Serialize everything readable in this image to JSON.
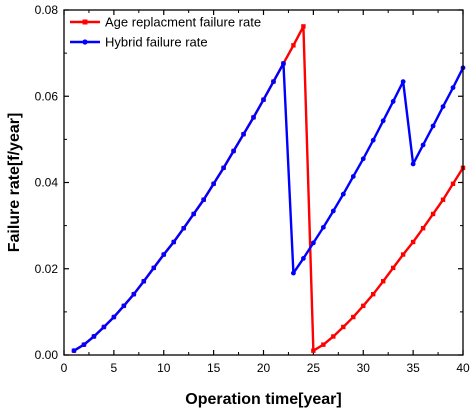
{
  "chart_data": {
    "type": "line",
    "xlabel": "Operation time[year]",
    "ylabel": "Failure rate[f/year]",
    "xlim": [
      0,
      40
    ],
    "ylim": [
      0,
      0.08
    ],
    "x_ticks": [
      "0",
      "5",
      "10",
      "15",
      "20",
      "25",
      "30",
      "35",
      "40"
    ],
    "y_ticks": [
      "0.00",
      "0.02",
      "0.04",
      "0.06",
      "0.08"
    ],
    "grid": false,
    "legend_position": "top-left",
    "series": [
      {
        "name": "Age replacment failure rate",
        "color": "#ff0000",
        "marker": "square",
        "points": [
          [
            1,
            0.001
          ],
          [
            2,
            0.0024
          ],
          [
            3,
            0.0043
          ],
          [
            4,
            0.0065
          ],
          [
            5,
            0.0088
          ],
          [
            6,
            0.0114
          ],
          [
            7,
            0.0141
          ],
          [
            8,
            0.0171
          ],
          [
            9,
            0.0202
          ],
          [
            10,
            0.0233
          ],
          [
            11,
            0.0262
          ],
          [
            12,
            0.0294
          ],
          [
            13,
            0.0327
          ],
          [
            14,
            0.036
          ],
          [
            15,
            0.0397
          ],
          [
            16,
            0.0434
          ],
          [
            17,
            0.0473
          ],
          [
            18,
            0.0512
          ],
          [
            19,
            0.0551
          ],
          [
            20,
            0.0592
          ],
          [
            21,
            0.0634
          ],
          [
            22,
            0.0676
          ],
          [
            23,
            0.0718
          ],
          [
            24,
            0.0762
          ],
          [
            25,
            0.001
          ],
          [
            26,
            0.0024
          ],
          [
            27,
            0.0043
          ],
          [
            28,
            0.0065
          ],
          [
            29,
            0.0088
          ],
          [
            30,
            0.0114
          ],
          [
            31,
            0.0141
          ],
          [
            32,
            0.0171
          ],
          [
            33,
            0.0202
          ],
          [
            34,
            0.0233
          ],
          [
            35,
            0.0262
          ],
          [
            36,
            0.0294
          ],
          [
            37,
            0.0327
          ],
          [
            38,
            0.036
          ],
          [
            39,
            0.0397
          ],
          [
            40,
            0.0434
          ]
        ]
      },
      {
        "name": "Hybrid failure rate",
        "color": "#0000ff",
        "marker": "circle",
        "points": [
          [
            1,
            0.001
          ],
          [
            2,
            0.0024
          ],
          [
            3,
            0.0043
          ],
          [
            4,
            0.0065
          ],
          [
            5,
            0.0088
          ],
          [
            6,
            0.0114
          ],
          [
            7,
            0.0141
          ],
          [
            8,
            0.0171
          ],
          [
            9,
            0.0202
          ],
          [
            10,
            0.0233
          ],
          [
            11,
            0.0262
          ],
          [
            12,
            0.0294
          ],
          [
            13,
            0.0327
          ],
          [
            14,
            0.036
          ],
          [
            15,
            0.0397
          ],
          [
            16,
            0.0434
          ],
          [
            17,
            0.0473
          ],
          [
            18,
            0.0512
          ],
          [
            19,
            0.0551
          ],
          [
            20,
            0.0592
          ],
          [
            21,
            0.0634
          ],
          [
            22,
            0.0676
          ],
          [
            23,
            0.019
          ],
          [
            24,
            0.0224
          ],
          [
            25,
            0.026
          ],
          [
            26,
            0.0296
          ],
          [
            27,
            0.0334
          ],
          [
            28,
            0.0373
          ],
          [
            29,
            0.0414
          ],
          [
            30,
            0.0455
          ],
          [
            31,
            0.0498
          ],
          [
            32,
            0.0543
          ],
          [
            33,
            0.0588
          ],
          [
            34,
            0.0634
          ],
          [
            35,
            0.0443
          ],
          [
            36,
            0.0487
          ],
          [
            37,
            0.0531
          ],
          [
            38,
            0.0576
          ],
          [
            39,
            0.062
          ],
          [
            40,
            0.0666
          ]
        ]
      }
    ]
  }
}
